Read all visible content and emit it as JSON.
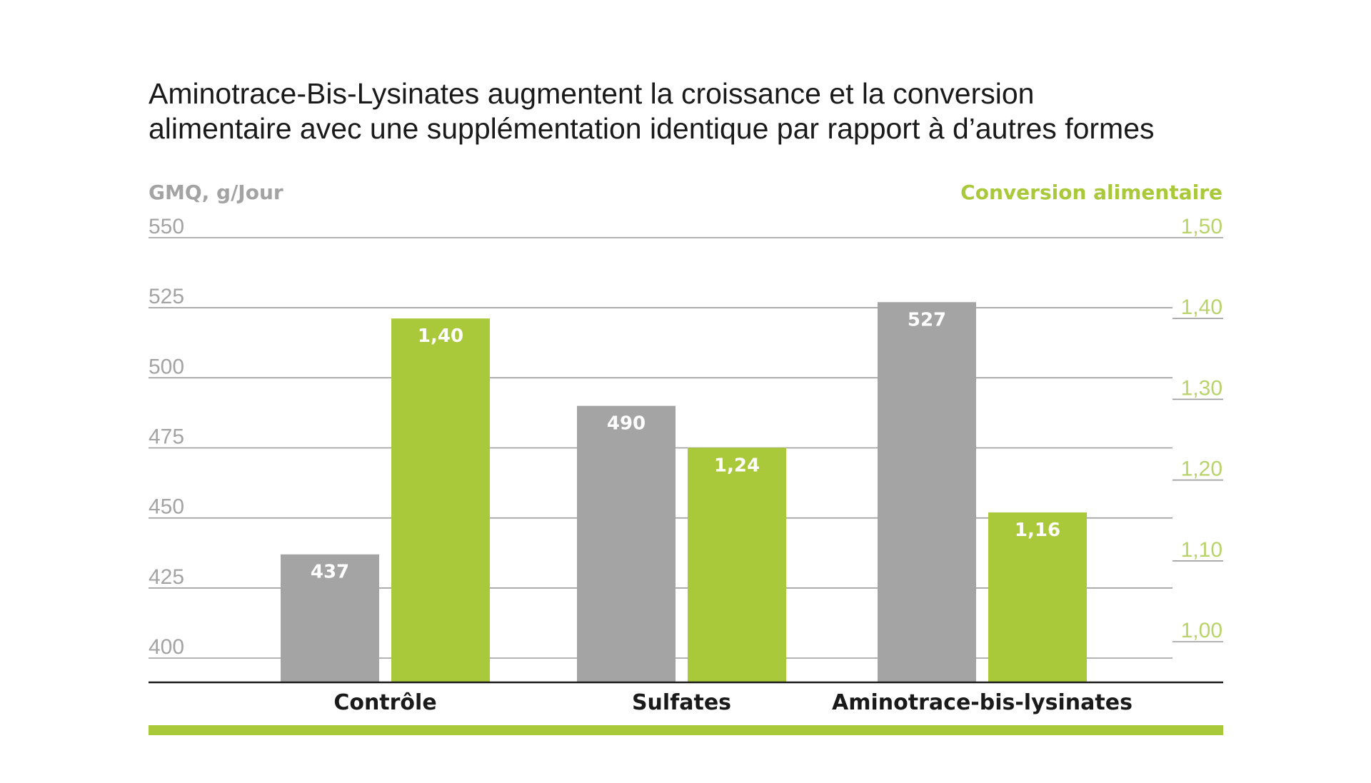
{
  "chart_data": {
    "type": "bar",
    "title_lines": [
      "Aminotrace-Bis-Lysinates augmentent la croissance et la conversion",
      "alimentaire avec une supplémentation identique par rapport  à d’autres formes"
    ],
    "y_left": {
      "label": "GMQ, g/Jour",
      "ticks": [
        "550",
        "525",
        "500",
        "475",
        "450",
        "425",
        "400"
      ],
      "ylim": [
        400,
        550
      ]
    },
    "y_right": {
      "label": "Conversion alimentaire",
      "ticks": [
        "1,50",
        "1,40",
        "1,30",
        "1,20",
        "1,10",
        "1,00"
      ],
      "ylim": [
        1.0,
        1.5
      ]
    },
    "categories": [
      "Contrôle",
      "Sulfates",
      "Aminotrace-bis-lysinates"
    ],
    "series": [
      {
        "axis": "left",
        "color": "#a3a4a3",
        "values": [
          437,
          490,
          527
        ],
        "labels": [
          "437",
          "490",
          "527"
        ]
      },
      {
        "axis": "right",
        "color": "#a9c83a",
        "values": [
          1.4,
          1.24,
          1.16
        ],
        "labels": [
          "1,40",
          "1,24",
          "1,16"
        ]
      }
    ],
    "grid": true,
    "colors": {
      "gray": "#a3a4a3",
      "green": "#a9c83a",
      "gridline": "#9a9a9a",
      "baseline": "#1a1a1a"
    }
  }
}
